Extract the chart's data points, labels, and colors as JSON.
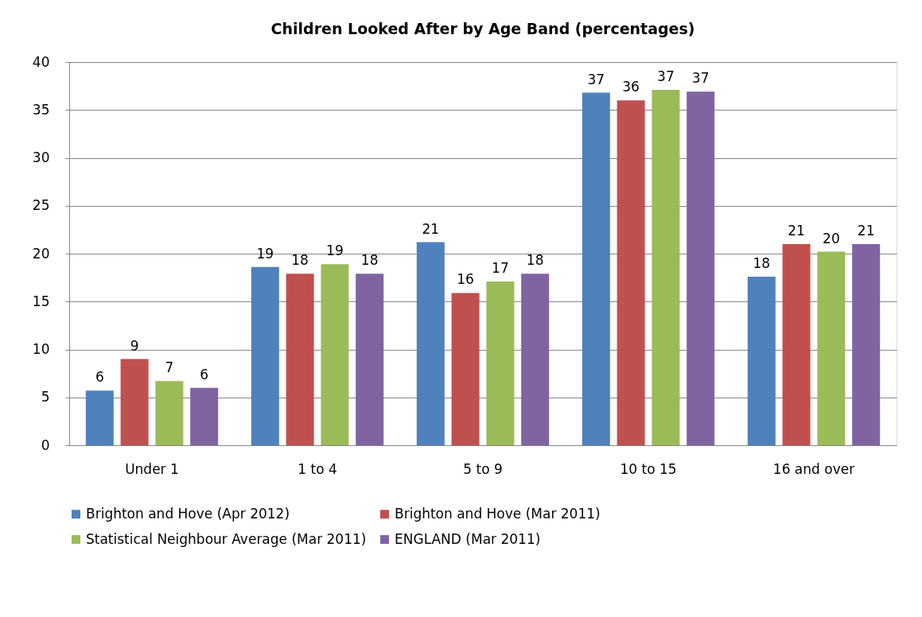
{
  "chart_data": {
    "type": "bar",
    "title": "Children Looked After by Age Band (percentages)",
    "categories": [
      "Under 1",
      "1 to 4",
      "5 to 9",
      "10 to 15",
      "16 and  over"
    ],
    "series": [
      {
        "name": "Brighton and Hove (Apr 2012)",
        "color": "#4f81bd",
        "values": [
          5.7,
          18.6,
          21.2,
          36.8,
          17.6
        ],
        "value_labels": [
          "6",
          "19",
          "21",
          "37",
          "18"
        ]
      },
      {
        "name": "Brighton and Hove (Mar 2011)",
        "color": "#c0504d",
        "values": [
          9.0,
          17.9,
          15.9,
          36.0,
          21.0
        ],
        "value_labels": [
          "9",
          "18",
          "16",
          "36",
          "21"
        ]
      },
      {
        "name": "Statistical Neighbour Average (Mar 2011)",
        "color": "#9bbb59",
        "values": [
          6.7,
          18.9,
          17.1,
          37.1,
          20.2
        ],
        "value_labels": [
          "7",
          "19",
          "17",
          "37",
          "20"
        ]
      },
      {
        "name": "ENGLAND (Mar 2011)",
        "color": "#8064a2",
        "values": [
          6.0,
          17.9,
          17.9,
          36.9,
          21.0
        ],
        "value_labels": [
          "6",
          "18",
          "18",
          "37",
          "21"
        ]
      }
    ],
    "ylim": [
      0,
      40
    ],
    "yticks": [
      0,
      5,
      10,
      15,
      20,
      25,
      30,
      35,
      40
    ],
    "grid": "y",
    "legend": "bottom"
  }
}
